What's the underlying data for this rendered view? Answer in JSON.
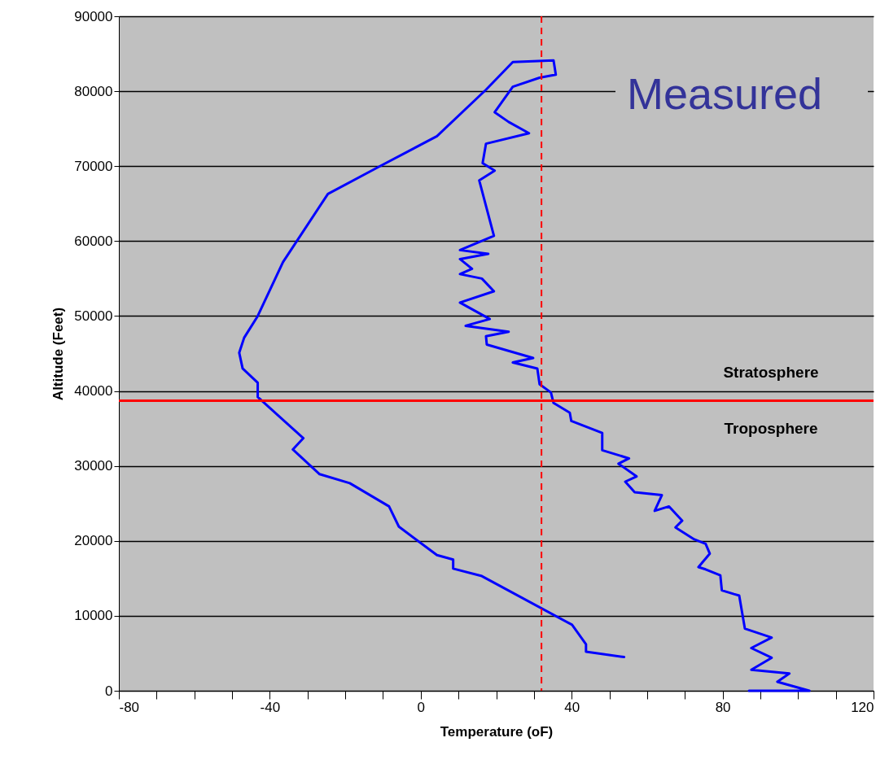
{
  "chart_data": {
    "type": "line",
    "xlabel": "Temperature (oF)",
    "ylabel": "Altitude (Feet)",
    "annotations": [
      "Measured",
      "Stratosphere",
      "Troposphere"
    ],
    "xlim": [
      -80,
      120
    ],
    "xticks": [
      -80,
      {
        "value": -70,
        "label": null
      },
      {
        "value": -60,
        "label": null
      },
      {
        "value": -50,
        "label": null
      },
      -40,
      {
        "value": -30,
        "label": null
      },
      {
        "value": -20,
        "label": null
      },
      {
        "value": -10,
        "label": null
      },
      0,
      {
        "value": 10,
        "label": null
      },
      {
        "value": 20,
        "label": null
      },
      {
        "value": 30,
        "label": null
      },
      40,
      {
        "value": 50,
        "label": null
      },
      {
        "value": 60,
        "label": null
      },
      {
        "value": 70,
        "label": null
      },
      80,
      {
        "value": 90,
        "label": null
      },
      {
        "value": 100,
        "label": null
      },
      {
        "value": 110,
        "label": null
      },
      120
    ],
    "ylim": [
      0,
      90000
    ],
    "yticks": [
      0,
      10000,
      20000,
      30000,
      40000,
      50000,
      60000,
      70000,
      80000,
      90000
    ],
    "grid": "y",
    "ref_lines": [
      {
        "axis": "x",
        "value": 32,
        "color": "#ff0000",
        "line_style": "dashed"
      },
      {
        "axis": "y",
        "value": 38700,
        "color": "#ff0000",
        "line_style": "solid"
      }
    ],
    "series": [
      {
        "color": "#0000ff",
        "x": [
          87,
          103,
          94.5,
          97.7,
          87.6,
          93,
          87.6,
          93,
          85.9,
          84.4,
          83,
          79.8,
          79.4,
          75.5,
          73.6,
          76.6,
          75.5,
          72.5,
          67.5,
          69.3,
          65.8,
          62,
          63.9,
          56.7,
          54.2,
          57.2,
          52.4,
          55.2,
          48.1,
          48.1,
          39.9,
          39.5,
          35.2,
          34.5,
          31.5,
          30.9,
          24.4,
          29.8,
          17.5,
          17.3,
          23.3,
          11.9,
          18.3,
          10.4,
          19.4,
          16.2,
          10.4,
          13.6,
          10.4,
          17.9,
          10.4,
          19.4,
          15.5,
          19.6,
          16.4,
          17.3,
          28.7,
          23.3,
          19.6,
          24.4,
          31.5,
          35.8,
          35.2,
          24.4,
          17.3,
          4.3,
          -10.8,
          -24.6,
          -36.5,
          -43.2,
          -46.8,
          -48.1,
          -47.2,
          -43.2,
          -43.2,
          -43.2,
          -41.9,
          -31.1,
          -33.9,
          -26.8,
          -18.8,
          -8.4,
          -5.8,
          4.3,
          8.6,
          8.6,
          16.2,
          40.1,
          43.8,
          43.8,
          53.9
        ],
        "values": [
          0,
          0,
          1200,
          2300,
          2800,
          4400,
          5700,
          7100,
          8300,
          12700,
          12900,
          13400,
          15400,
          16200,
          16500,
          18300,
          19600,
          20200,
          21800,
          22700,
          24600,
          24000,
          26100,
          26500,
          27900,
          28600,
          30300,
          31000,
          32100,
          34400,
          36000,
          37100,
          38400,
          39800,
          40900,
          43000,
          43800,
          44400,
          46200,
          47300,
          47900,
          48700,
          49600,
          51800,
          53300,
          55000,
          55600,
          56300,
          57600,
          58300,
          58800,
          60700,
          68100,
          69400,
          70400,
          73000,
          74400,
          75900,
          77200,
          80600,
          81800,
          82200,
          84100,
          83900,
          80200,
          74000,
          70000,
          66300,
          57200,
          50000,
          47100,
          45100,
          43000,
          41100,
          40900,
          39200,
          38600,
          33700,
          32200,
          28900,
          27700,
          24600,
          21900,
          18100,
          17500,
          16300,
          15300,
          8800,
          6200,
          5200,
          4500
        ]
      }
    ]
  }
}
